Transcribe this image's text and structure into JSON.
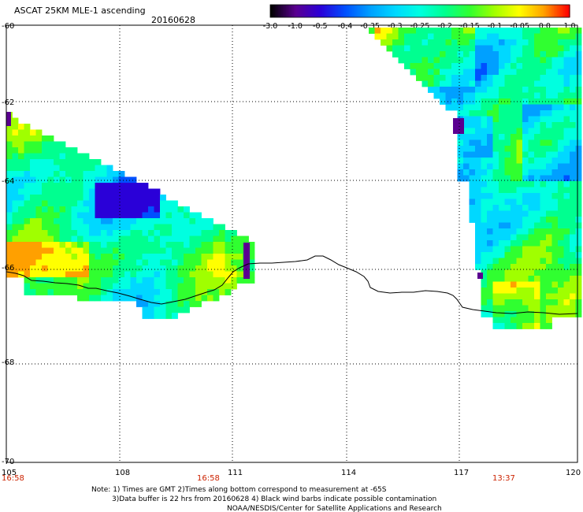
{
  "header": {
    "title": "ASCAT 25KM MLE-1 ascending",
    "date": "20160628"
  },
  "colorbar": {
    "labels": [
      "-3.0",
      "-1.0",
      "-0.5",
      "-0.4",
      "-0.35",
      "-0.3",
      "-0.25",
      "-0.2",
      "-0.15",
      "-0.1",
      "-0.05",
      "0.0",
      "1.0"
    ],
    "colors": [
      "#000000",
      "#5a0090",
      "#2a00d8",
      "#0050ff",
      "#00a0ff",
      "#00d8ff",
      "#00ffe0",
      "#00ff90",
      "#30ff30",
      "#a0ff00",
      "#ffff00",
      "#ffa000",
      "#ff0000"
    ]
  },
  "axes": {
    "x_ticks": [
      "105",
      "108",
      "111",
      "114",
      "117",
      "120"
    ],
    "y_ticks": [
      "-60",
      "-62",
      "-64",
      "-66",
      "-68",
      "-70"
    ],
    "time_labels": [
      "16:58",
      "16:58",
      "13:37"
    ]
  },
  "footer": {
    "line1": "Note: 1) Times are GMT 2)Times along bottom correspond to measurement at -65S",
    "line2": "3)Data buffer is 22 hrs from 20160628 4) Black wind barbs indicate possible contamination",
    "line3": "NOAA/NESDIS/Center for Satellite Applications and Research"
  }
}
